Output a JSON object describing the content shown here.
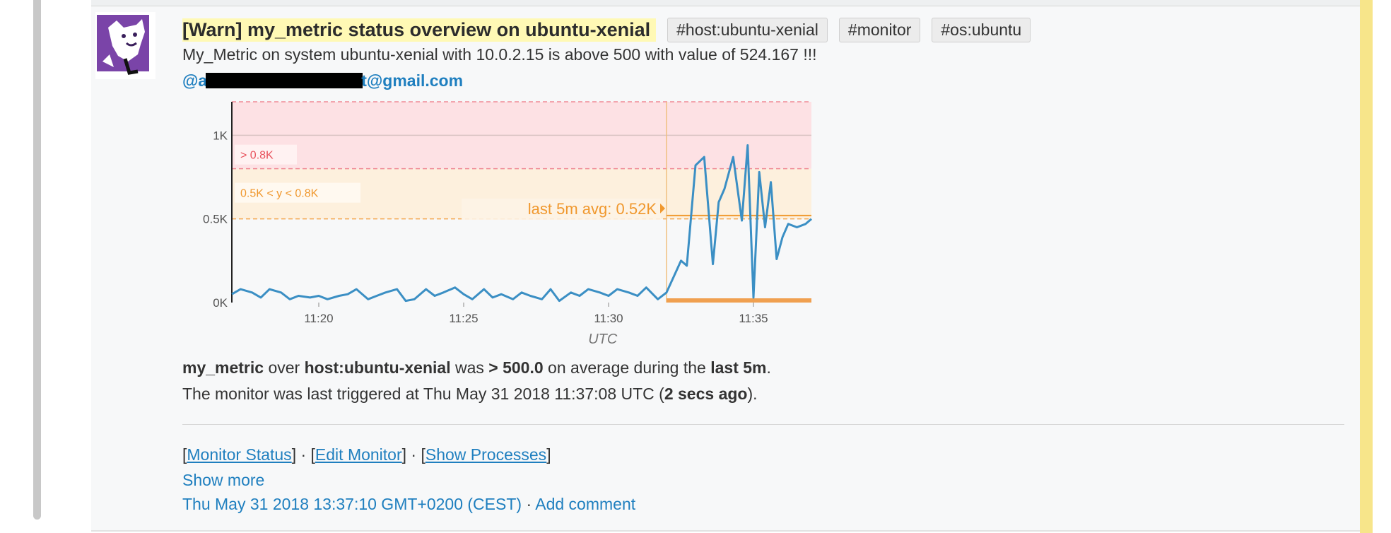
{
  "alert": {
    "title": "[Warn] my_metric status overview on ubuntu-xenial",
    "tags": [
      "#host:ubuntu-xenial",
      "#monitor",
      "#os:ubuntu"
    ],
    "message": "My_Metric on system ubuntu-xenial with 10.0.2.15 is above 500 with value of 524.167 !!!",
    "email_prefix": "@a",
    "email_suffix": "t@gmail.com"
  },
  "summary": {
    "metric": "my_metric",
    "over": " over ",
    "host": "host:ubuntu-xenial",
    "was": " was ",
    "threshold": "> 500.0",
    "on_avg": " on average during the ",
    "window": "last 5m",
    "period": ".",
    "triggered_prefix": "The monitor was last triggered at Thu May 31 2018 11:37:08 UTC (",
    "ago": "2 secs ago",
    "triggered_suffix": ")."
  },
  "links": {
    "monitor_status": "Monitor Status",
    "edit_monitor": "Edit Monitor",
    "show_processes": "Show Processes",
    "show_more": "Show more",
    "timestamp": "Thu May 31 2018 13:37:10 GMT+0200 (CEST)",
    "add_comment": "Add comment",
    "dot": " · "
  },
  "chart_data": {
    "type": "line",
    "xlabel": "UTC",
    "x_ticks": [
      "11:20",
      "11:25",
      "11:30",
      "11:35"
    ],
    "x_tick_minutes": [
      20,
      25,
      30,
      35
    ],
    "xlim": [
      17,
      37
    ],
    "y_ticks": [
      "0K",
      "0.5K",
      "1K"
    ],
    "y_tick_values": [
      0,
      500,
      1000
    ],
    "ylim": [
      0,
      1200
    ],
    "alert_label": "> 0.8K",
    "alert_threshold": 800,
    "warn_label": "0.5K < y < 0.8K",
    "warn_threshold": 500,
    "avg_label": "last 5m avg: 0.52K",
    "avg_value": 520,
    "window_start": 32,
    "colors": {
      "line": "#3b8fc4",
      "alert": "#fde1e4",
      "warn": "#fdf0dd",
      "alert_text": "#e8505b",
      "warn_text": "#f0982e"
    },
    "series": [
      {
        "x": [
          17,
          17.3,
          17.7,
          18,
          18.3,
          18.7,
          19,
          19.3,
          19.7,
          20,
          20.3,
          20.7,
          21,
          21.3,
          21.7,
          22,
          22.3,
          22.7,
          23,
          23.3,
          23.7,
          24,
          24.3,
          24.7,
          25,
          25.3,
          25.7,
          26,
          26.3,
          26.7,
          27,
          27.3,
          27.7,
          28,
          28.3,
          28.7,
          29,
          29.3,
          29.7,
          30,
          30.3,
          30.7,
          31,
          31.3,
          31.7,
          32,
          32.5,
          32.7,
          33,
          33.3,
          33.6,
          33.8,
          34,
          34.3,
          34.6,
          34.8,
          35,
          35.2,
          35.4,
          35.6,
          35.8,
          36,
          36.2,
          36.5,
          36.8,
          37
        ],
        "values": [
          50,
          80,
          60,
          30,
          80,
          60,
          20,
          40,
          30,
          40,
          20,
          40,
          50,
          80,
          20,
          40,
          60,
          80,
          10,
          20,
          80,
          40,
          60,
          90,
          50,
          20,
          80,
          30,
          50,
          20,
          60,
          40,
          20,
          80,
          10,
          60,
          40,
          80,
          60,
          40,
          80,
          60,
          40,
          90,
          20,
          60,
          250,
          220,
          820,
          870,
          230,
          600,
          680,
          870,
          490,
          940,
          30,
          780,
          450,
          720,
          260,
          390,
          470,
          450,
          470,
          500
        ]
      }
    ]
  }
}
